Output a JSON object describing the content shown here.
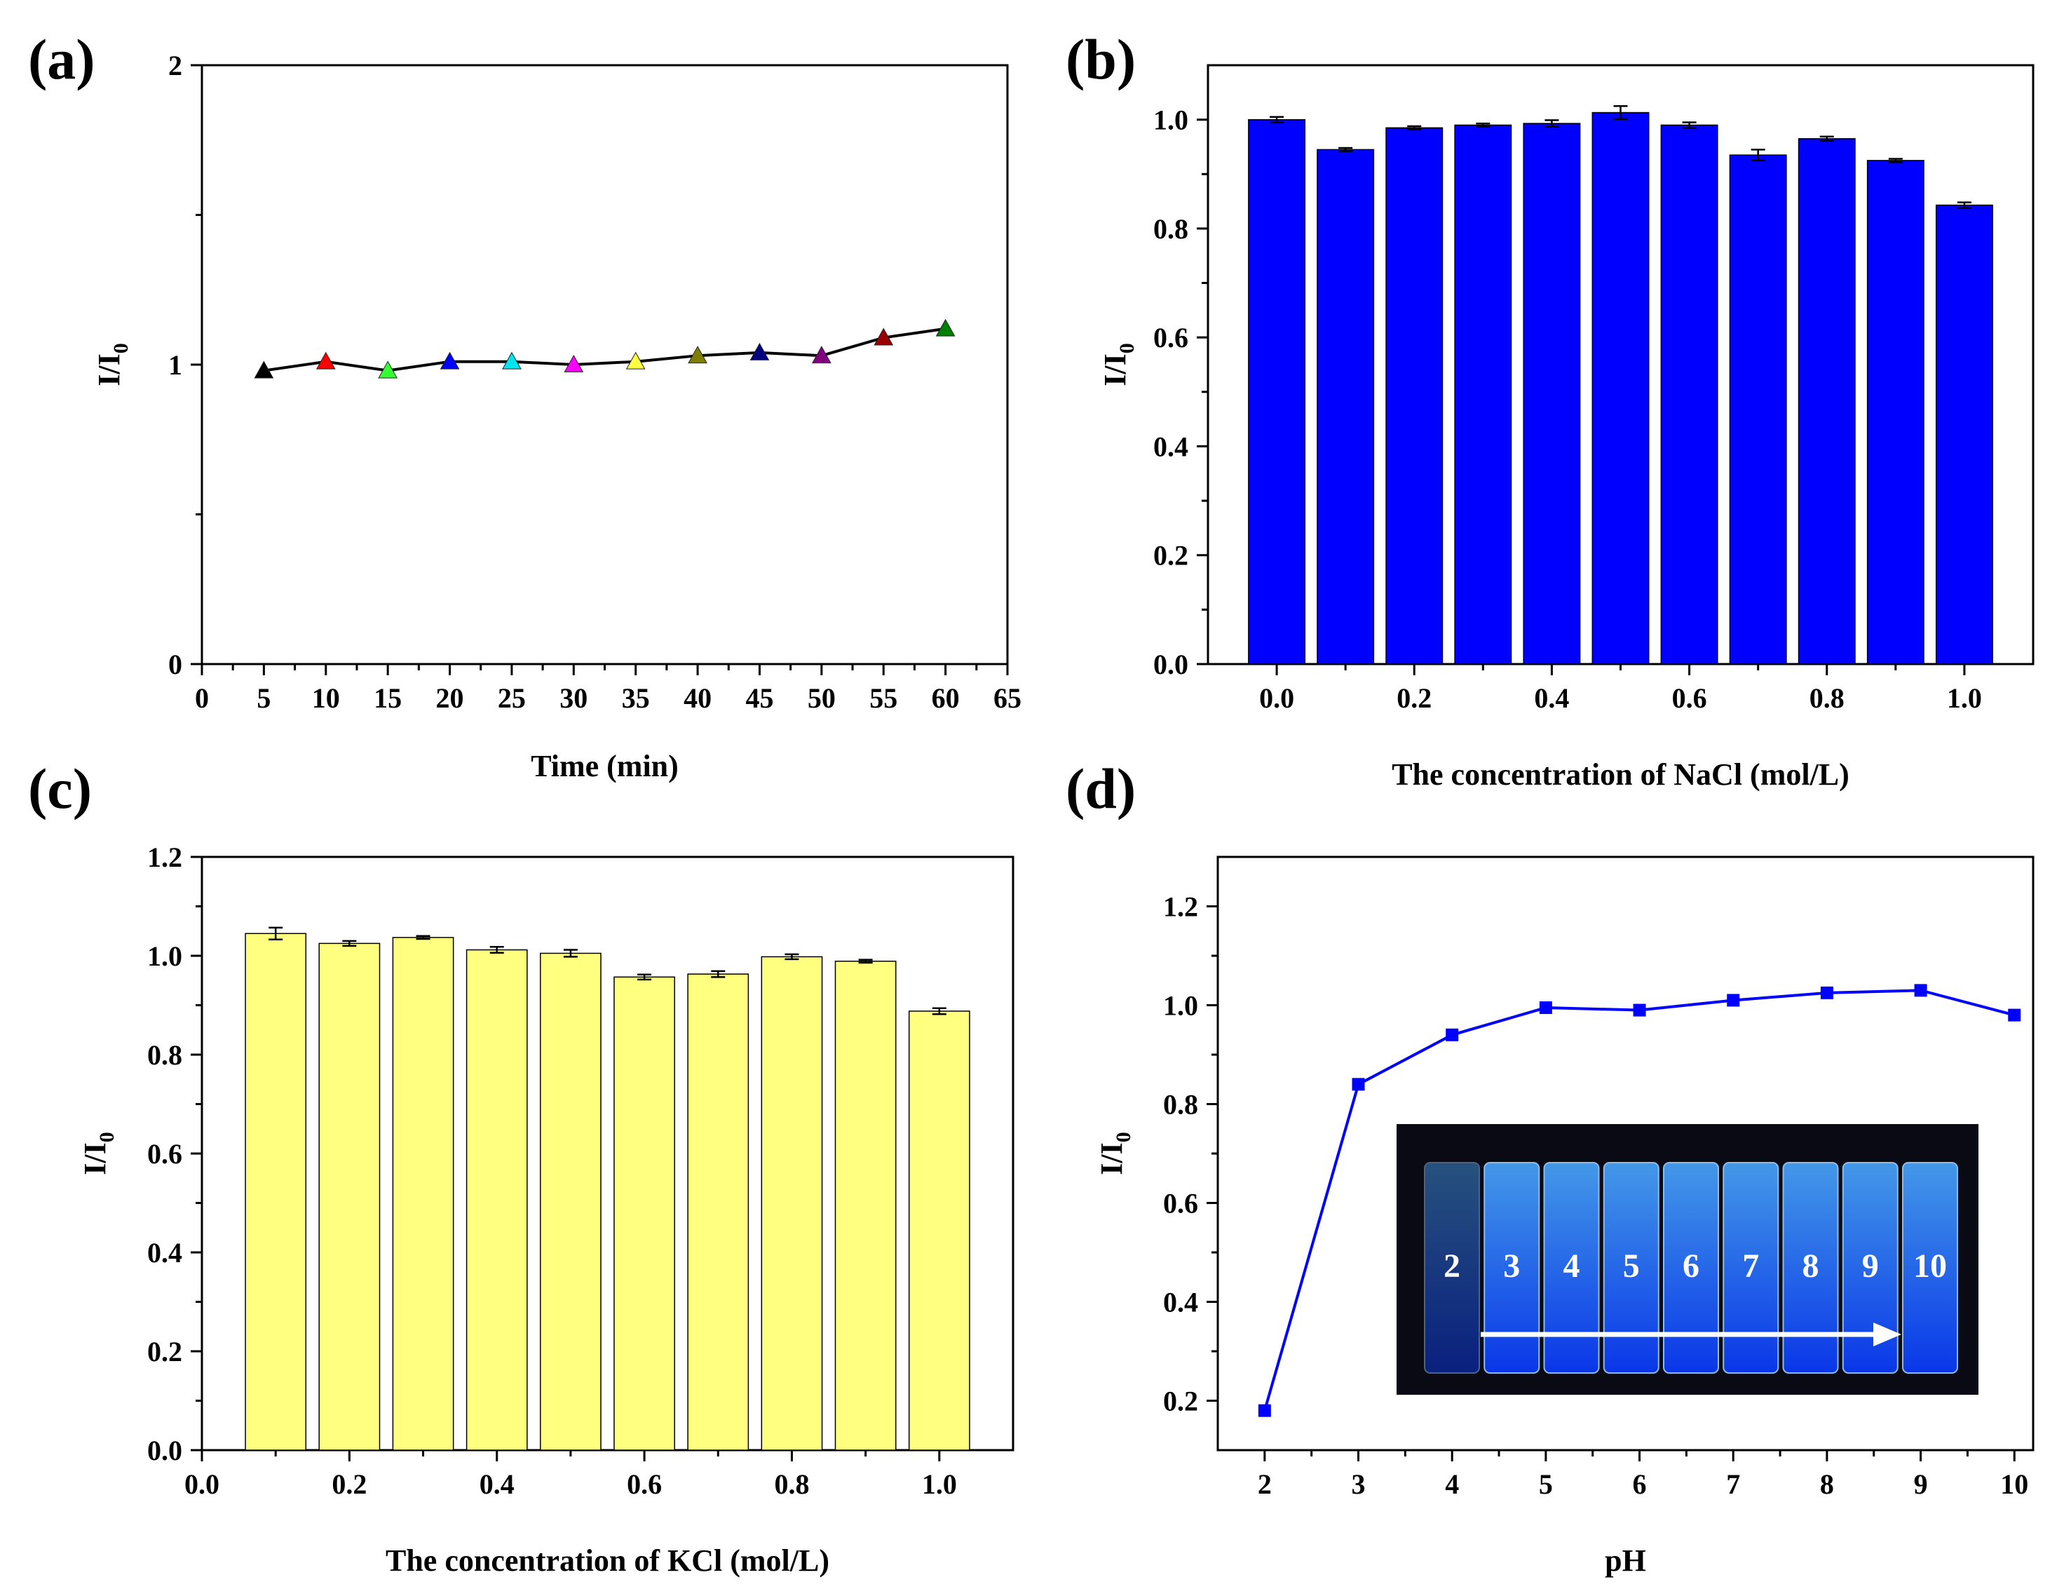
{
  "chart_data": [
    {
      "panel": "(a)",
      "type": "line",
      "xlabel": "Time (min)",
      "ylabel": "I/I",
      "ylabel_sub": "0",
      "xlim": [
        0,
        65
      ],
      "ylim": [
        0,
        2
      ],
      "xticks": [
        "0",
        "5",
        "10",
        "15",
        "20",
        "25",
        "30",
        "35",
        "40",
        "45",
        "50",
        "55",
        "60",
        "65"
      ],
      "yticks": [
        "0",
        "1",
        "2"
      ],
      "line_color": "#000000",
      "marker": "triangle",
      "x": [
        5,
        10,
        15,
        20,
        25,
        30,
        35,
        40,
        45,
        50,
        55,
        60
      ],
      "y": [
        0.98,
        1.01,
        0.98,
        1.01,
        1.01,
        1.0,
        1.01,
        1.03,
        1.04,
        1.03,
        1.09,
        1.12
      ],
      "marker_colors": [
        "#000000",
        "#ff0000",
        "#33ff33",
        "#0000ff",
        "#00e5ee",
        "#ff00ff",
        "#ffff44",
        "#808000",
        "#000080",
        "#800080",
        "#990000",
        "#008000"
      ]
    },
    {
      "panel": "(b)",
      "type": "bar",
      "xlabel": "The concentration of NaCl (mol/L)",
      "ylabel": "I/I",
      "ylabel_sub": "0",
      "xlim": [
        -0.1,
        1.1
      ],
      "ylim": [
        0,
        1.1
      ],
      "xticks": [
        "0.0",
        "0.2",
        "0.4",
        "0.6",
        "0.8",
        "1.0"
      ],
      "yticks": [
        "0.0",
        "0.2",
        "0.4",
        "0.6",
        "0.8",
        "1.0"
      ],
      "bar_color": "#0000ff",
      "x": [
        0.0,
        0.1,
        0.2,
        0.3,
        0.4,
        0.5,
        0.6,
        0.7,
        0.8,
        0.9,
        1.0
      ],
      "values": [
        1.0,
        0.945,
        0.985,
        0.99,
        0.993,
        1.013,
        0.99,
        0.935,
        0.965,
        0.925,
        0.843
      ],
      "errors": [
        0.005,
        0.003,
        0.003,
        0.003,
        0.006,
        0.012,
        0.005,
        0.01,
        0.004,
        0.003,
        0.005
      ]
    },
    {
      "panel": "(c)",
      "type": "bar",
      "xlabel": "The concentration of KCl (mol/L)",
      "ylabel": "I/I",
      "ylabel_sub": "0",
      "xlim": [
        0,
        1.1
      ],
      "ylim": [
        0,
        1.2
      ],
      "xticks": [
        "0.0",
        "0.2",
        "0.4",
        "0.6",
        "0.8",
        "1.0"
      ],
      "yticks": [
        "0.0",
        "0.2",
        "0.4",
        "0.6",
        "0.8",
        "1.0",
        "1.2"
      ],
      "bar_color": "#ffff80",
      "x": [
        0.1,
        0.2,
        0.3,
        0.4,
        0.5,
        0.6,
        0.7,
        0.8,
        0.9,
        1.0
      ],
      "values": [
        1.045,
        1.025,
        1.037,
        1.012,
        1.005,
        0.957,
        0.963,
        0.998,
        0.989,
        0.888
      ],
      "errors": [
        0.012,
        0.005,
        0.003,
        0.006,
        0.007,
        0.005,
        0.006,
        0.005,
        0.003,
        0.006
      ]
    },
    {
      "panel": "(d)",
      "type": "line",
      "xlabel": "pH",
      "ylabel": "I/I",
      "ylabel_sub": "0",
      "xlim": [
        1.5,
        10.2
      ],
      "ylim": [
        0.1,
        1.3
      ],
      "xticks": [
        "2",
        "3",
        "4",
        "5",
        "6",
        "7",
        "8",
        "9",
        "10"
      ],
      "yticks": [
        "0.2",
        "0.4",
        "0.6",
        "0.8",
        "1.0",
        "1.2"
      ],
      "line_color": "#0000ff",
      "marker": "square",
      "x": [
        2,
        3,
        4,
        5,
        6,
        7,
        8,
        9,
        10
      ],
      "y": [
        0.18,
        0.84,
        0.94,
        0.995,
        0.99,
        1.01,
        1.025,
        1.03,
        0.98
      ],
      "inset_labels": [
        "2",
        "3",
        "4",
        "5",
        "6",
        "7",
        "8",
        "9",
        "10"
      ]
    }
  ]
}
